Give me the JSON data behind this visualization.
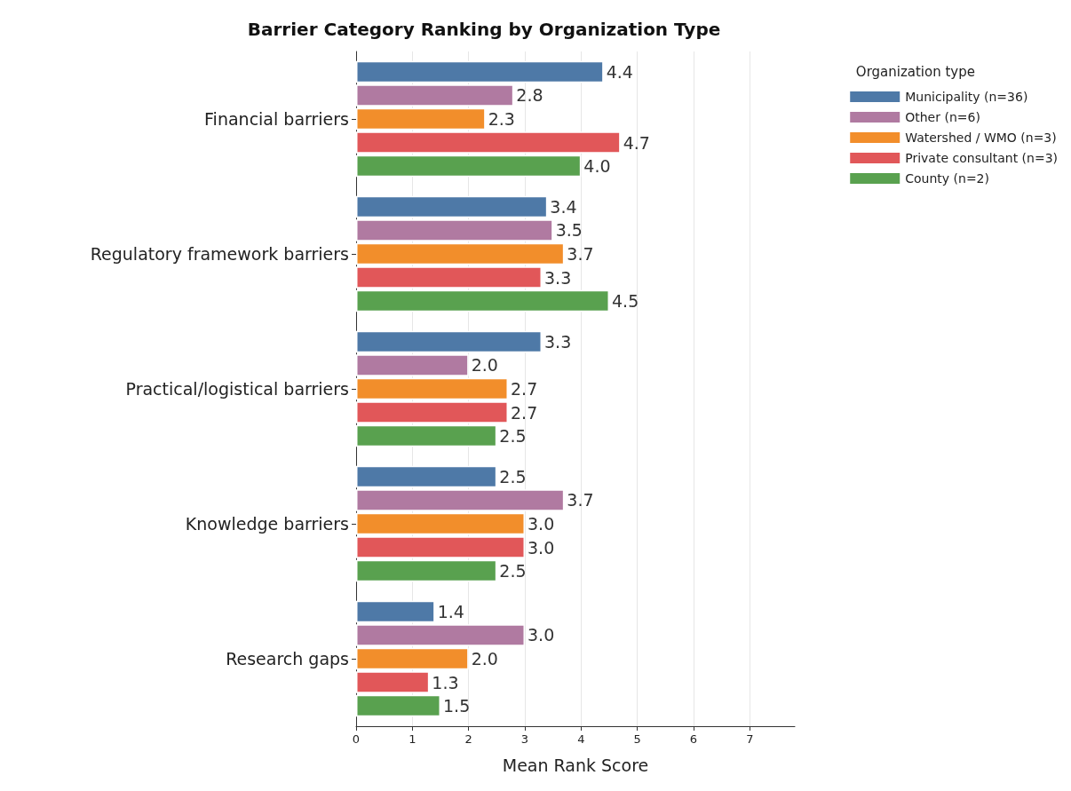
{
  "chart_data": {
    "type": "bar",
    "orientation": "horizontal",
    "title": "Barrier Category Ranking by Organization Type",
    "xlabel": "Mean Rank Score",
    "legend_title": "Organization type",
    "legend": "top right",
    "grid": "x",
    "categories": [
      "Financial barriers",
      "Regulatory framework barriers",
      "Practical/logistical barriers",
      "Knowledge barriers",
      "Research gaps"
    ],
    "xlim": [
      0,
      7.8
    ],
    "xticks": [
      0,
      1,
      2,
      3,
      4,
      5,
      6,
      7
    ],
    "series": [
      {
        "name": "Municipality (n=36)",
        "color": "#4e79a7",
        "values": [
          4.4,
          3.4,
          3.3,
          2.5,
          1.4
        ],
        "value_labels": [
          "4.4",
          "3.4",
          "3.3",
          "2.5",
          "1.4"
        ]
      },
      {
        "name": "Other (n=6)",
        "color": "#b07aa1",
        "values": [
          2.8,
          3.5,
          2.0,
          3.7,
          3.0
        ],
        "value_labels": [
          "2.8",
          "3.5",
          "2.0",
          "3.7",
          "3.0"
        ]
      },
      {
        "name": "Watershed / WMO (n=3)",
        "color": "#f28e2b",
        "values": [
          2.3,
          3.7,
          2.7,
          3.0,
          2.0
        ],
        "value_labels": [
          "2.3",
          "3.7",
          "2.7",
          "3.0",
          "2.0"
        ]
      },
      {
        "name": "Private consultant (n=3)",
        "color": "#e15759",
        "values": [
          4.7,
          3.3,
          2.7,
          3.0,
          1.3
        ],
        "value_labels": [
          "4.7",
          "3.3",
          "2.7",
          "3.0",
          "1.3"
        ]
      },
      {
        "name": "County (n=2)",
        "color": "#59a14f",
        "values": [
          4.0,
          4.5,
          2.5,
          2.5,
          1.5
        ],
        "value_labels": [
          "4.0",
          "4.5",
          "2.5",
          "2.5",
          "1.5"
        ]
      }
    ]
  }
}
